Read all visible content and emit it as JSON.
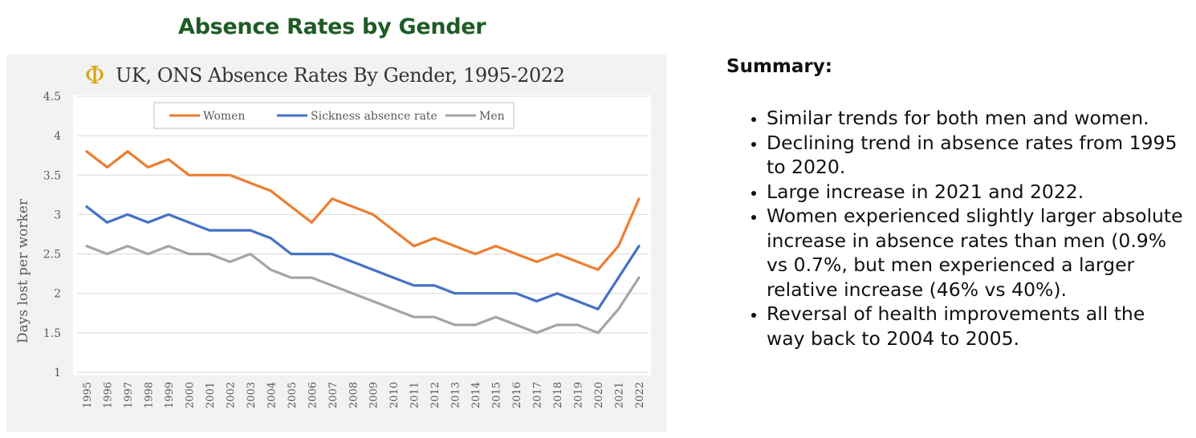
{
  "page": {
    "title": "Absence Rates by Gender"
  },
  "chart_header": {
    "logo": "Φ",
    "title": "UK, ONS Absence Rates By Gender, 1995-2022"
  },
  "summary": {
    "heading": "Summary:",
    "bullets": [
      "Similar trends for both men and women.",
      "Declining trend in absence rates from 1995 to 2020.",
      "Large increase in 2021 and 2022.",
      "Women experienced slightly larger absolute increase in absence rates than men (0.9% vs 0.7%, but men experienced a larger relative increase (46% vs 40%).",
      "Reversal of health improvements all the way back to 2004 to 2005."
    ]
  },
  "chart_data": {
    "type": "line",
    "title": "UK, ONS Absence Rates By Gender, 1995-2022",
    "xlabel": "",
    "ylabel": "Days lost per worker",
    "ylim": [
      1,
      4.5
    ],
    "yticks": [
      1,
      1.5,
      2,
      2.5,
      3,
      3.5,
      4,
      4.5
    ],
    "ytick_labels": [
      "1",
      "1.5",
      "2",
      "2.5",
      "3",
      "3.5",
      "4",
      "4.5"
    ],
    "x": [
      "1995",
      "1996",
      "1997",
      "1998",
      "1999",
      "2000",
      "2001",
      "2002",
      "2003",
      "2004",
      "2005",
      "2006",
      "2007",
      "2008",
      "2009",
      "2010",
      "2011",
      "2012",
      "2013",
      "2014",
      "2015",
      "2016",
      "2017",
      "2018",
      "2019",
      "2020",
      "2021",
      "2022"
    ],
    "grid": true,
    "legend_position": "top",
    "series": [
      {
        "name": "Women",
        "color": "#ed7d31",
        "values": [
          3.8,
          3.6,
          3.8,
          3.6,
          3.7,
          3.5,
          3.5,
          3.5,
          3.4,
          3.3,
          3.1,
          2.9,
          3.2,
          3.1,
          3.0,
          2.8,
          2.6,
          2.7,
          2.6,
          2.5,
          2.6,
          2.5,
          2.4,
          2.5,
          2.4,
          2.3,
          2.6,
          3.2
        ]
      },
      {
        "name": "Sickness absence rate",
        "color": "#4472c4",
        "values": [
          3.1,
          2.9,
          3.0,
          2.9,
          3.0,
          2.9,
          2.8,
          2.8,
          2.8,
          2.7,
          2.5,
          2.5,
          2.5,
          2.4,
          2.3,
          2.2,
          2.1,
          2.1,
          2.0,
          2.0,
          2.0,
          2.0,
          1.9,
          2.0,
          1.9,
          1.8,
          2.2,
          2.6
        ]
      },
      {
        "name": "Men",
        "color": "#a5a5a5",
        "values": [
          2.6,
          2.5,
          2.6,
          2.5,
          2.6,
          2.5,
          2.5,
          2.4,
          2.5,
          2.3,
          2.2,
          2.2,
          2.1,
          2.0,
          1.9,
          1.8,
          1.7,
          1.7,
          1.6,
          1.6,
          1.7,
          1.6,
          1.5,
          1.6,
          1.6,
          1.5,
          1.8,
          2.2
        ]
      }
    ]
  }
}
